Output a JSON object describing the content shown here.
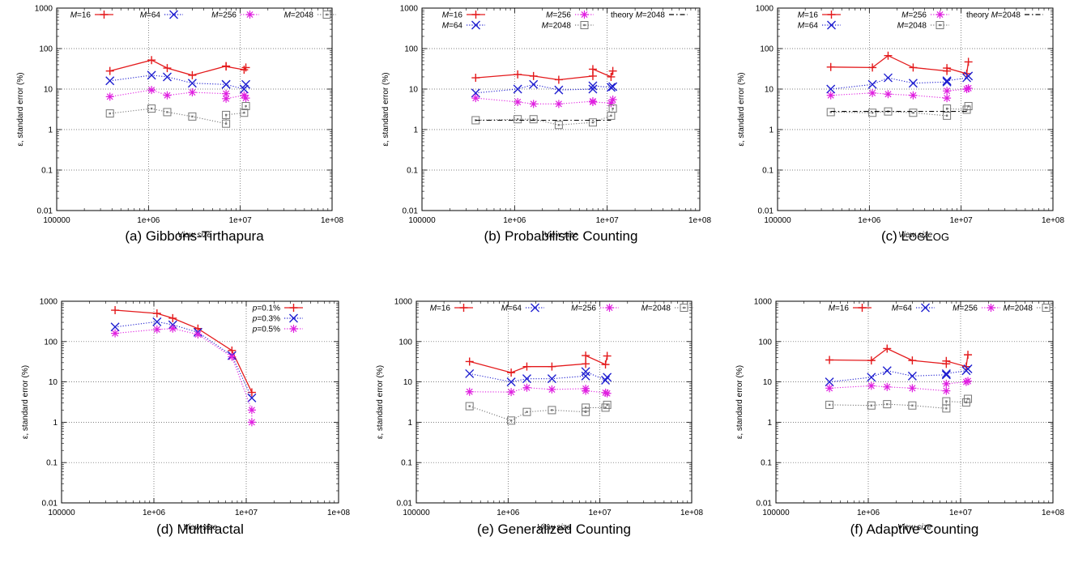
{
  "figure": {
    "panels": [
      {
        "caption_label": "(a)",
        "caption_text": "Gibbons-Tirthapura",
        "caption_style": "normal"
      },
      {
        "caption_label": "(b)",
        "caption_text": "Probabilistic Counting",
        "caption_style": "normal"
      },
      {
        "caption_label": "(c)",
        "caption_text": "LogLog",
        "caption_style": "small-caps"
      },
      {
        "caption_label": "(d)",
        "caption_text": "Multifractal",
        "caption_style": "normal"
      },
      {
        "caption_label": "(e)",
        "caption_text": "Generalized Counting",
        "caption_style": "normal"
      },
      {
        "caption_label": "(f)",
        "caption_text": "Adaptive Counting",
        "caption_style": "normal"
      }
    ]
  },
  "chart_data": [
    {
      "type": "line",
      "xlabel": "View size",
      "ylabel": "ε, standard error (%)",
      "xscale": "log",
      "yscale": "log",
      "xlim": [
        100000,
        100000000
      ],
      "ylim": [
        0.01,
        1000
      ],
      "xticks": [
        "100000",
        "1e+06",
        "1e+07",
        "1e+08"
      ],
      "yticks": [
        "0.01",
        "0.1",
        "1",
        "10",
        "100",
        "1000"
      ],
      "grid": true,
      "legend_position": "top",
      "series": [
        {
          "name": "M=16",
          "color": "#e41a1c",
          "dash": "solid",
          "marker": "plus",
          "x": [
            380000,
            1080000,
            1600000,
            3000000,
            7000000,
            7000000,
            11000000,
            11500000
          ],
          "y": [
            28,
            52,
            33,
            22,
            37,
            36,
            30,
            34
          ]
        },
        {
          "name": "M=64",
          "color": "#1f1fd0",
          "dash": "dotted",
          "marker": "x",
          "x": [
            380000,
            1080000,
            1600000,
            3000000,
            7000000,
            7000000,
            11000000,
            11500000
          ],
          "y": [
            16,
            22,
            20,
            14,
            13,
            13,
            10,
            13
          ]
        },
        {
          "name": "M=256",
          "color": "#e020e0",
          "dash": "dotted",
          "marker": "star",
          "x": [
            380000,
            1080000,
            1600000,
            3000000,
            7000000,
            7000000,
            11000000,
            11500000
          ],
          "y": [
            6.5,
            9.5,
            7,
            8.3,
            7.7,
            5.8,
            7,
            6
          ]
        },
        {
          "name": "M=2048",
          "color": "#777777",
          "dash": "dotted",
          "marker": "square",
          "x": [
            380000,
            1080000,
            1600000,
            3000000,
            7000000,
            7000000,
            11000000,
            11500000
          ],
          "y": [
            2.5,
            3.3,
            2.7,
            2.1,
            1.4,
            2.3,
            2.6,
            3.8
          ]
        }
      ]
    },
    {
      "type": "line",
      "xlabel": "View size",
      "ylabel": "ε, standard error (%)",
      "xscale": "log",
      "yscale": "log",
      "xlim": [
        100000,
        100000000
      ],
      "ylim": [
        0.01,
        1000
      ],
      "xticks": [
        "100000",
        "1e+06",
        "1e+07",
        "1e+08"
      ],
      "yticks": [
        "0.01",
        "0.1",
        "1",
        "10",
        "100",
        "1000"
      ],
      "grid": true,
      "legend_position": "top",
      "series": [
        {
          "name": "M=16",
          "color": "#e41a1c",
          "dash": "solid",
          "marker": "plus",
          "x": [
            380000,
            1080000,
            1600000,
            3000000,
            7000000,
            7000000,
            11000000,
            11500000
          ],
          "y": [
            19,
            23,
            21,
            17,
            21,
            31,
            20,
            28
          ]
        },
        {
          "name": "M=64",
          "color": "#1f1fd0",
          "dash": "dotted",
          "marker": "x",
          "x": [
            380000,
            1080000,
            1600000,
            3000000,
            7000000,
            7000000,
            11000000,
            11500000
          ],
          "y": [
            8,
            10,
            13,
            9.5,
            10,
            12,
            11,
            11.5
          ]
        },
        {
          "name": "M=256",
          "color": "#e020e0",
          "dash": "dotted",
          "marker": "star",
          "x": [
            380000,
            1080000,
            1600000,
            3000000,
            7000000,
            7000000,
            11000000,
            11500000
          ],
          "y": [
            6,
            4.8,
            4.3,
            4.3,
            5,
            4.8,
            4.5,
            5.5
          ]
        },
        {
          "name": "M=2048",
          "color": "#777777",
          "dash": "dotted",
          "marker": "square",
          "x": [
            380000,
            1080000,
            1600000,
            3000000,
            7000000,
            11000000,
            11500000
          ],
          "y": [
            1.7,
            1.8,
            1.8,
            1.3,
            1.5,
            2.2,
            3.3
          ]
        },
        {
          "name": "theory M=2048",
          "color": "#000000",
          "dash": "dashdot",
          "marker": "none",
          "x": [
            380000,
            11000000
          ],
          "y": [
            1.7,
            1.7
          ]
        }
      ]
    },
    {
      "type": "line",
      "xlabel": "View size",
      "ylabel": "ε, standard error (%)",
      "xscale": "log",
      "yscale": "log",
      "xlim": [
        100000,
        100000000
      ],
      "ylim": [
        0.01,
        1000
      ],
      "xticks": [
        "100000",
        "1e+06",
        "1e+07",
        "1e+08"
      ],
      "yticks": [
        "0.01",
        "0.1",
        "1",
        "10",
        "100",
        "1000"
      ],
      "grid": true,
      "legend_position": "top",
      "series": [
        {
          "name": "M=16",
          "color": "#e41a1c",
          "dash": "solid",
          "marker": "plus",
          "x": [
            380000,
            1080000,
            1600000,
            3000000,
            7000000,
            7000000,
            11500000,
            12000000
          ],
          "y": [
            35,
            34,
            67,
            34,
            28,
            33,
            24,
            47
          ]
        },
        {
          "name": "M=64",
          "color": "#1f1fd0",
          "dash": "dotted",
          "marker": "x",
          "x": [
            380000,
            1080000,
            1600000,
            3000000,
            7000000,
            7000000,
            11500000,
            12000000
          ],
          "y": [
            10,
            13,
            19,
            14,
            15,
            16,
            19,
            21
          ]
        },
        {
          "name": "M=256",
          "color": "#e020e0",
          "dash": "dotted",
          "marker": "star",
          "x": [
            380000,
            1080000,
            1600000,
            3000000,
            7000000,
            7000000,
            11500000,
            12000000
          ],
          "y": [
            7,
            8,
            7.5,
            7,
            6,
            9,
            10,
            10.5
          ]
        },
        {
          "name": "M=2048",
          "color": "#777777",
          "dash": "dotted",
          "marker": "square",
          "x": [
            380000,
            1080000,
            1600000,
            3000000,
            7000000,
            7000000,
            11500000,
            12000000
          ],
          "y": [
            2.7,
            2.6,
            2.8,
            2.6,
            2.2,
            3.3,
            3.1,
            3.8
          ]
        },
        {
          "name": "theory M=2048",
          "color": "#000000",
          "dash": "dashdot",
          "marker": "none",
          "x": [
            380000,
            12000000
          ],
          "y": [
            2.8,
            2.8
          ]
        }
      ]
    },
    {
      "type": "line",
      "xlabel": "View size",
      "ylabel": "ε, standard error (%)",
      "xscale": "log",
      "yscale": "log",
      "xlim": [
        100000,
        100000000
      ],
      "ylim": [
        0.01,
        1000
      ],
      "xticks": [
        "100000",
        "1e+06",
        "1e+07",
        "1e+08"
      ],
      "yticks": [
        "0.01",
        "0.1",
        "1",
        "10",
        "100",
        "1000"
      ],
      "grid": true,
      "legend_position": "top-right",
      "series": [
        {
          "name": "p=0.1%",
          "color": "#e41a1c",
          "dash": "solid",
          "marker": "plus",
          "x": [
            380000,
            1080000,
            1600000,
            3000000,
            7000000,
            11500000
          ],
          "y": [
            600,
            500,
            380,
            210,
            60,
            5.5
          ]
        },
        {
          "name": "p=0.3%",
          "color": "#1f1fd0",
          "dash": "dotted",
          "marker": "x",
          "x": [
            380000,
            1080000,
            1600000,
            3000000,
            7000000,
            11500000
          ],
          "y": [
            230,
            310,
            260,
            170,
            45,
            4
          ]
        },
        {
          "name": "p=0.5%",
          "color": "#e020e0",
          "dash": "dotted",
          "marker": "star",
          "x": [
            380000,
            1080000,
            1600000,
            3000000,
            7000000,
            11500000,
            11500000
          ],
          "y": [
            160,
            200,
            210,
            150,
            42,
            2,
            1
          ]
        }
      ]
    },
    {
      "type": "line",
      "xlabel": "View size",
      "ylabel": "ε, standard error (%)",
      "xscale": "log",
      "yscale": "log",
      "xlim": [
        100000,
        100000000
      ],
      "ylim": [
        0.01,
        1000
      ],
      "xticks": [
        "100000",
        "1e+06",
        "1e+07",
        "1e+08"
      ],
      "yticks": [
        "0.01",
        "0.1",
        "1",
        "10",
        "100",
        "1000"
      ],
      "grid": true,
      "legend_position": "top",
      "series": [
        {
          "name": "M=16",
          "color": "#e41a1c",
          "dash": "solid",
          "marker": "plus",
          "x": [
            380000,
            1080000,
            1600000,
            3000000,
            7000000,
            7000000,
            11500000,
            12000000
          ],
          "y": [
            32,
            17,
            24,
            24,
            28,
            45,
            27,
            44
          ]
        },
        {
          "name": "M=64",
          "color": "#1f1fd0",
          "dash": "dotted",
          "marker": "x",
          "x": [
            380000,
            1080000,
            1600000,
            3000000,
            7000000,
            7000000,
            11500000,
            12000000
          ],
          "y": [
            16,
            10,
            12,
            12,
            14,
            18,
            11,
            13
          ]
        },
        {
          "name": "M=256",
          "color": "#e020e0",
          "dash": "dotted",
          "marker": "star",
          "x": [
            380000,
            1080000,
            1600000,
            3000000,
            7000000,
            7000000,
            11500000,
            12000000
          ],
          "y": [
            5.7,
            5.6,
            7.2,
            6.5,
            6.8,
            6,
            5.4,
            5.2
          ]
        },
        {
          "name": "M=2048",
          "color": "#777777",
          "dash": "dotted",
          "marker": "square",
          "x": [
            380000,
            1080000,
            1600000,
            3000000,
            7000000,
            7000000,
            11500000,
            12000000
          ],
          "y": [
            2.5,
            1.1,
            1.8,
            2,
            1.8,
            2.3,
            2.3,
            2.7
          ]
        }
      ]
    },
    {
      "type": "line",
      "xlabel": "View size",
      "ylabel": "ε, standard error (%)",
      "xscale": "log",
      "yscale": "log",
      "xlim": [
        100000,
        100000000
      ],
      "ylim": [
        0.01,
        1000
      ],
      "xticks": [
        "100000",
        "1e+06",
        "1e+07",
        "1e+08"
      ],
      "yticks": [
        "0.01",
        "0.1",
        "1",
        "10",
        "100",
        "1000"
      ],
      "grid": true,
      "legend_position": "top",
      "series": [
        {
          "name": "M=16",
          "color": "#e41a1c",
          "dash": "solid",
          "marker": "plus",
          "x": [
            380000,
            1080000,
            1600000,
            3000000,
            7000000,
            7000000,
            11500000,
            12000000
          ],
          "y": [
            35,
            34,
            67,
            34,
            28,
            33,
            24,
            47
          ]
        },
        {
          "name": "M=64",
          "color": "#1f1fd0",
          "dash": "dotted",
          "marker": "x",
          "x": [
            380000,
            1080000,
            1600000,
            3000000,
            7000000,
            7000000,
            11500000,
            12000000
          ],
          "y": [
            10,
            13,
            19,
            14,
            15,
            16,
            19,
            21
          ]
        },
        {
          "name": "M=256",
          "color": "#e020e0",
          "dash": "dotted",
          "marker": "star",
          "x": [
            380000,
            1080000,
            1600000,
            3000000,
            7000000,
            7000000,
            11500000,
            12000000
          ],
          "y": [
            7,
            8,
            7.5,
            7,
            6,
            9,
            10,
            10.5
          ]
        },
        {
          "name": "M=2048",
          "color": "#777777",
          "dash": "dotted",
          "marker": "square",
          "x": [
            380000,
            1080000,
            1600000,
            3000000,
            7000000,
            7000000,
            11500000,
            12000000
          ],
          "y": [
            2.7,
            2.6,
            2.8,
            2.6,
            2.2,
            3.3,
            3.1,
            3.8
          ]
        }
      ]
    }
  ]
}
